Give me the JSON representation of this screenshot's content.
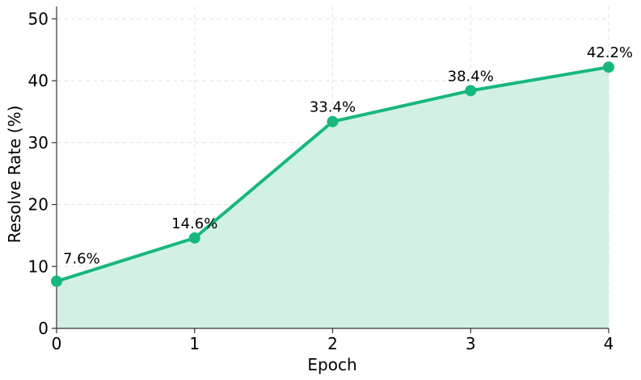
{
  "chart_data": {
    "type": "area",
    "xlabel": "Epoch",
    "ylabel": "Resolve Rate (%)",
    "x": [
      0,
      1,
      2,
      3,
      4
    ],
    "values": [
      7.6,
      14.6,
      33.4,
      38.4,
      42.2
    ],
    "data_labels": [
      "7.6%",
      "14.6%",
      "33.4%",
      "38.4%",
      "42.2%"
    ],
    "xlim": [
      0,
      4
    ],
    "ylim": [
      0,
      52
    ],
    "x_ticks": [
      0,
      1,
      2,
      3,
      4
    ],
    "x_tick_labels": [
      "0",
      "1",
      "2",
      "3",
      "4"
    ],
    "y_ticks": [
      0,
      10,
      20,
      30,
      40,
      50
    ],
    "y_tick_labels": [
      "0",
      "10",
      "20",
      "30",
      "40",
      "50"
    ],
    "grid": true,
    "legend": "none",
    "colors": {
      "line": "#17b87c",
      "fill": "#d2f1e4",
      "grid": "#e3e3e3",
      "axis": "#333333"
    }
  }
}
